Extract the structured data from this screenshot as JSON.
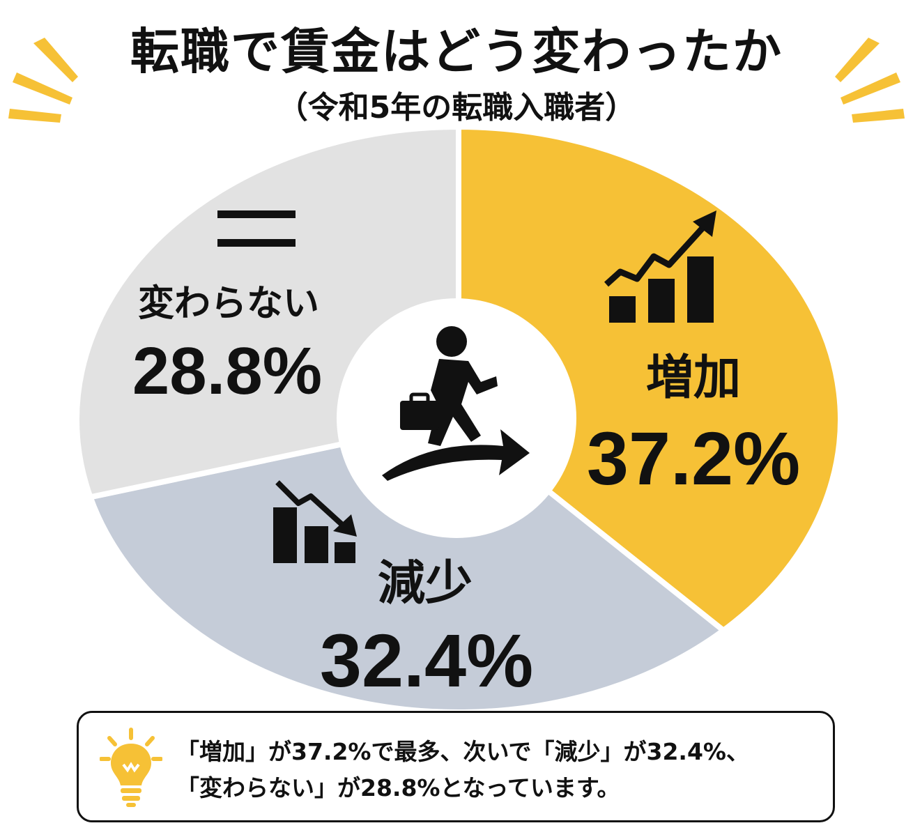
{
  "title": "転職で賃金はどう変わったか",
  "subtitle": "（令和5年の転職入職者）",
  "colors": {
    "increase": "#F6C136",
    "decrease": "#C5CCD8",
    "same": "#E2E2E2",
    "text": "#111111",
    "accent": "#F6C136"
  },
  "icons": {
    "increase": "rising-bar-chart-icon",
    "decrease": "falling-bar-chart-icon",
    "same": "equals-icon",
    "center": "walking-businessman-icon",
    "note": "lightbulb-icon"
  },
  "chart_data": {
    "type": "pie",
    "categories": [
      "増加",
      "減少",
      "変わらない"
    ],
    "values": [
      37.2,
      32.4,
      28.8
    ],
    "value_labels": [
      "37.2%",
      "32.4%",
      "28.8%"
    ],
    "title": "転職で賃金はどう変わったか",
    "subtitle": "（令和5年の転職入職者）"
  },
  "note": {
    "text": "「増加」が37.2%で最多、次いで「減少」が32.4%、\n「変わらない」が28.8%となっています。"
  }
}
